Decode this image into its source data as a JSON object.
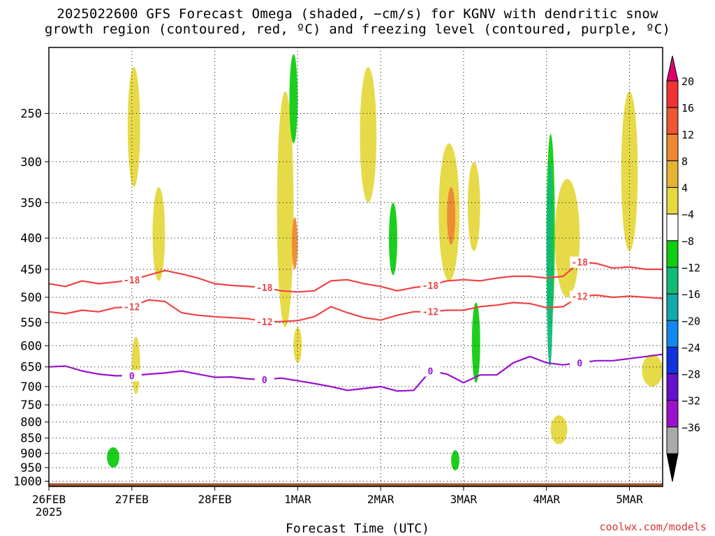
{
  "chart_data": {
    "type": "heatmap",
    "title_line1": "2025022600 GFS Forecast Omega (shaded, −cm/s) for KGNV with dendritic snow",
    "title_line2": "growth region (contoured, red, ºC) and freezing level (contoured, purple, ºC)",
    "xlabel": "Forecast Time (UTC)",
    "x_ticks": [
      "26FEB",
      "27FEB",
      "28FEB",
      "1MAR",
      "2MAR",
      "3MAR",
      "4MAR",
      "5MAR"
    ],
    "x_year": "2025",
    "y_ticks": [
      250,
      300,
      350,
      400,
      450,
      500,
      550,
      600,
      650,
      700,
      750,
      800,
      850,
      900,
      950,
      1000
    ],
    "y_scale": "log-pressure",
    "y_range": [
      1020,
      195
    ],
    "x_range_days": [
      0,
      7.4
    ],
    "grid": true,
    "colorbar": {
      "labels": [
        "20",
        "16",
        "12",
        "8",
        "4",
        "−4",
        "−8",
        "−12",
        "−16",
        "−20",
        "−24",
        "−28",
        "−32",
        "−36"
      ],
      "colors": [
        "#dd0070",
        "#ee3333",
        "#ee5533",
        "#ee8833",
        "#e6b233",
        "#e6d83f",
        "#ffffff",
        "#11cc11",
        "#11bb77",
        "#11aaaa",
        "#1188ee",
        "#1133dd",
        "#6611cc",
        "#9911cc",
        "#aaaaaa",
        "#000000"
      ]
    },
    "contours": [
      {
        "label": "-18",
        "color": "#ee4444",
        "x": [
          0,
          0.2,
          0.4,
          0.6,
          0.8,
          1.0,
          1.2,
          1.4,
          1.6,
          1.8,
          2.0,
          2.2,
          2.4,
          2.6,
          2.8,
          3.0,
          3.2,
          3.4,
          3.6,
          3.8,
          4.0,
          4.2,
          4.4,
          4.6,
          4.8,
          5.0,
          5.2,
          5.4,
          5.6,
          5.8,
          6.0,
          6.2,
          6.4,
          6.6,
          6.8,
          7.0,
          7.2,
          7.4
        ],
        "y": [
          475,
          480,
          470,
          475,
          472,
          468,
          460,
          452,
          458,
          465,
          475,
          478,
          480,
          482,
          488,
          490,
          488,
          470,
          468,
          475,
          480,
          488,
          482,
          478,
          470,
          468,
          470,
          465,
          462,
          462,
          465,
          462,
          438,
          440,
          448,
          446,
          450,
          450
        ]
      },
      {
        "label": "-12",
        "color": "#ee4444",
        "x": [
          0,
          0.2,
          0.4,
          0.6,
          0.8,
          1.0,
          1.2,
          1.4,
          1.6,
          1.8,
          2.0,
          2.2,
          2.4,
          2.6,
          2.8,
          3.0,
          3.2,
          3.4,
          3.6,
          3.8,
          4.0,
          4.2,
          4.4,
          4.6,
          4.8,
          5.0,
          5.2,
          5.4,
          5.6,
          5.8,
          6.0,
          6.2,
          6.4,
          6.6,
          6.8,
          7.0,
          7.2,
          7.4
        ],
        "y": [
          528,
          532,
          525,
          528,
          520,
          518,
          505,
          508,
          530,
          535,
          538,
          540,
          542,
          548,
          548,
          546,
          538,
          518,
          530,
          540,
          545,
          535,
          528,
          528,
          525,
          525,
          518,
          515,
          510,
          512,
          520,
          518,
          498,
          496,
          500,
          498,
          500,
          502
        ]
      },
      {
        "label": "0",
        "color": "#9911cc",
        "x": [
          0,
          0.2,
          0.4,
          0.6,
          0.8,
          1.0,
          1.2,
          1.4,
          1.6,
          1.8,
          2.0,
          2.2,
          2.4,
          2.6,
          2.8,
          3.0,
          3.2,
          3.4,
          3.6,
          3.8,
          4.0,
          4.2,
          4.4,
          4.6,
          4.8,
          5.0,
          5.2,
          5.4,
          5.6,
          5.8,
          6.0,
          6.2,
          6.4,
          6.6,
          6.8,
          7.0,
          7.2,
          7.4
        ],
        "y": [
          650,
          648,
          660,
          668,
          672,
          672,
          668,
          665,
          660,
          668,
          676,
          675,
          680,
          682,
          678,
          685,
          692,
          700,
          710,
          705,
          700,
          712,
          710,
          660,
          668,
          690,
          670,
          670,
          640,
          625,
          640,
          645,
          640,
          635,
          635,
          630,
          625,
          620
        ]
      }
    ],
    "omega_regions": [
      {
        "value": 6,
        "x": [
          0.95,
          1.1
        ],
        "p": [
          210,
          330
        ]
      },
      {
        "value": 6,
        "x": [
          1.25,
          1.4
        ],
        "p": [
          330,
          470
        ]
      },
      {
        "value": 6,
        "x": [
          2.75,
          2.95
        ],
        "p": [
          230,
          560
        ]
      },
      {
        "value": 10,
        "x": [
          2.93,
          3.0
        ],
        "p": [
          370,
          450
        ]
      },
      {
        "value": 6,
        "x": [
          3.75,
          3.95
        ],
        "p": [
          210,
          350
        ]
      },
      {
        "value": 6,
        "x": [
          4.7,
          4.95
        ],
        "p": [
          280,
          470
        ]
      },
      {
        "value": 6,
        "x": [
          5.05,
          5.2
        ],
        "p": [
          300,
          420
        ]
      },
      {
        "value": 10,
        "x": [
          4.8,
          4.9
        ],
        "p": [
          330,
          410
        ]
      },
      {
        "value": 6,
        "x": [
          6.1,
          6.4
        ],
        "p": [
          320,
          500
        ]
      },
      {
        "value": 6,
        "x": [
          6.9,
          7.1
        ],
        "p": [
          230,
          420
        ]
      },
      {
        "value": 6,
        "x": [
          1.0,
          1.1
        ],
        "p": [
          580,
          720
        ]
      },
      {
        "value": 6,
        "x": [
          2.95,
          3.05
        ],
        "p": [
          560,
          640
        ]
      },
      {
        "value": 6,
        "x": [
          6.05,
          6.25
        ],
        "p": [
          780,
          870
        ]
      },
      {
        "value": 6,
        "x": [
          7.15,
          7.4
        ],
        "p": [
          620,
          700
        ]
      },
      {
        "value": -6,
        "x": [
          2.9,
          3.0
        ],
        "p": [
          200,
          280
        ]
      },
      {
        "value": -6,
        "x": [
          5.1,
          5.2
        ],
        "p": [
          510,
          690
        ]
      },
      {
        "value": -6,
        "x": [
          6.0,
          6.1
        ],
        "p": [
          270,
          560
        ]
      },
      {
        "value": -10,
        "x": [
          6.0,
          6.08
        ],
        "p": [
          300,
          650
        ]
      },
      {
        "value": -6,
        "x": [
          4.1,
          4.2
        ],
        "p": [
          350,
          460
        ]
      },
      {
        "value": -6,
        "x": [
          0.7,
          0.85
        ],
        "p": [
          880,
          950
        ]
      },
      {
        "value": -6,
        "x": [
          4.85,
          4.95
        ],
        "p": [
          890,
          960
        ]
      }
    ]
  },
  "watermark": "coolwx.com/models"
}
